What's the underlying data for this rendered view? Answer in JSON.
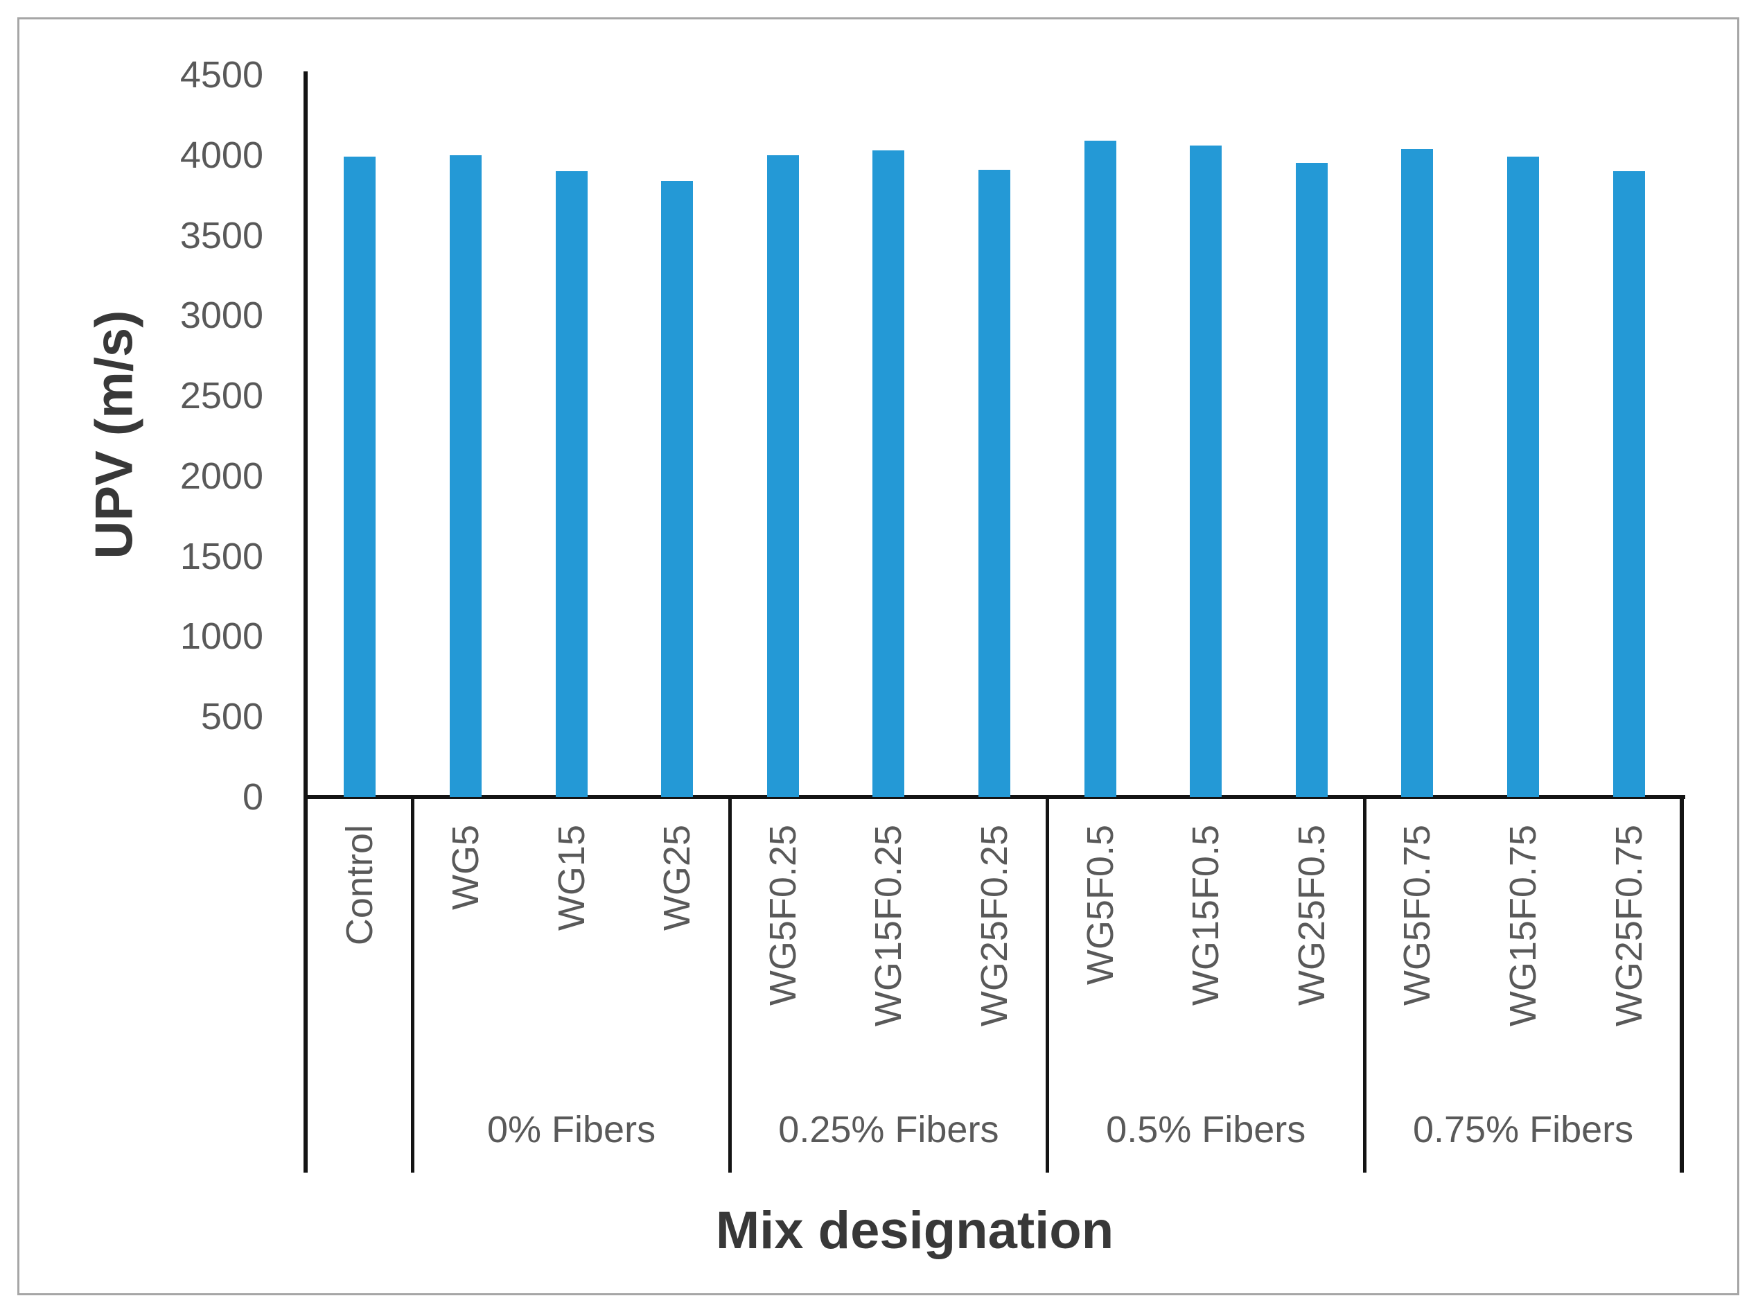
{
  "chart_data": {
    "type": "bar",
    "title": "",
    "xlabel": "Mix designation",
    "ylabel": "UPV (m/s)",
    "ylim": [
      0,
      4500
    ],
    "ytick_interval": 500,
    "yticks": [
      4500,
      4000,
      3500,
      3000,
      2500,
      2000,
      1500,
      1000,
      500,
      0
    ],
    "categories": [
      "Control",
      "WG5",
      "WG15",
      "WG25",
      "WG5F0.25",
      "WG15F0.25",
      "WG25F0.25",
      "WG5F0.5",
      "WG15F0.5",
      "WG25F0.5",
      "WG5F0.75",
      "WG15F0.75",
      "WG25F0.75"
    ],
    "values": [
      3990,
      4000,
      3900,
      3840,
      4000,
      4030,
      3910,
      4090,
      4060,
      3950,
      4040,
      3990,
      3900
    ],
    "groups": [
      {
        "label": "",
        "span": 1
      },
      {
        "label": "0% Fibers",
        "span": 3
      },
      {
        "label": "0.25% Fibers",
        "span": 3
      },
      {
        "label": "0.5% Fibers",
        "span": 3
      },
      {
        "label": "0.75% Fibers",
        "span": 3
      }
    ],
    "grid": false,
    "legend": false,
    "bar_color": "#2499d6"
  },
  "colors": {
    "bar": "#2499d6",
    "axis_line": "#141414",
    "tick_label": "#595959",
    "axis_title": "#383838",
    "figure_border": "#a6a6a6",
    "background": "#ffffff"
  }
}
